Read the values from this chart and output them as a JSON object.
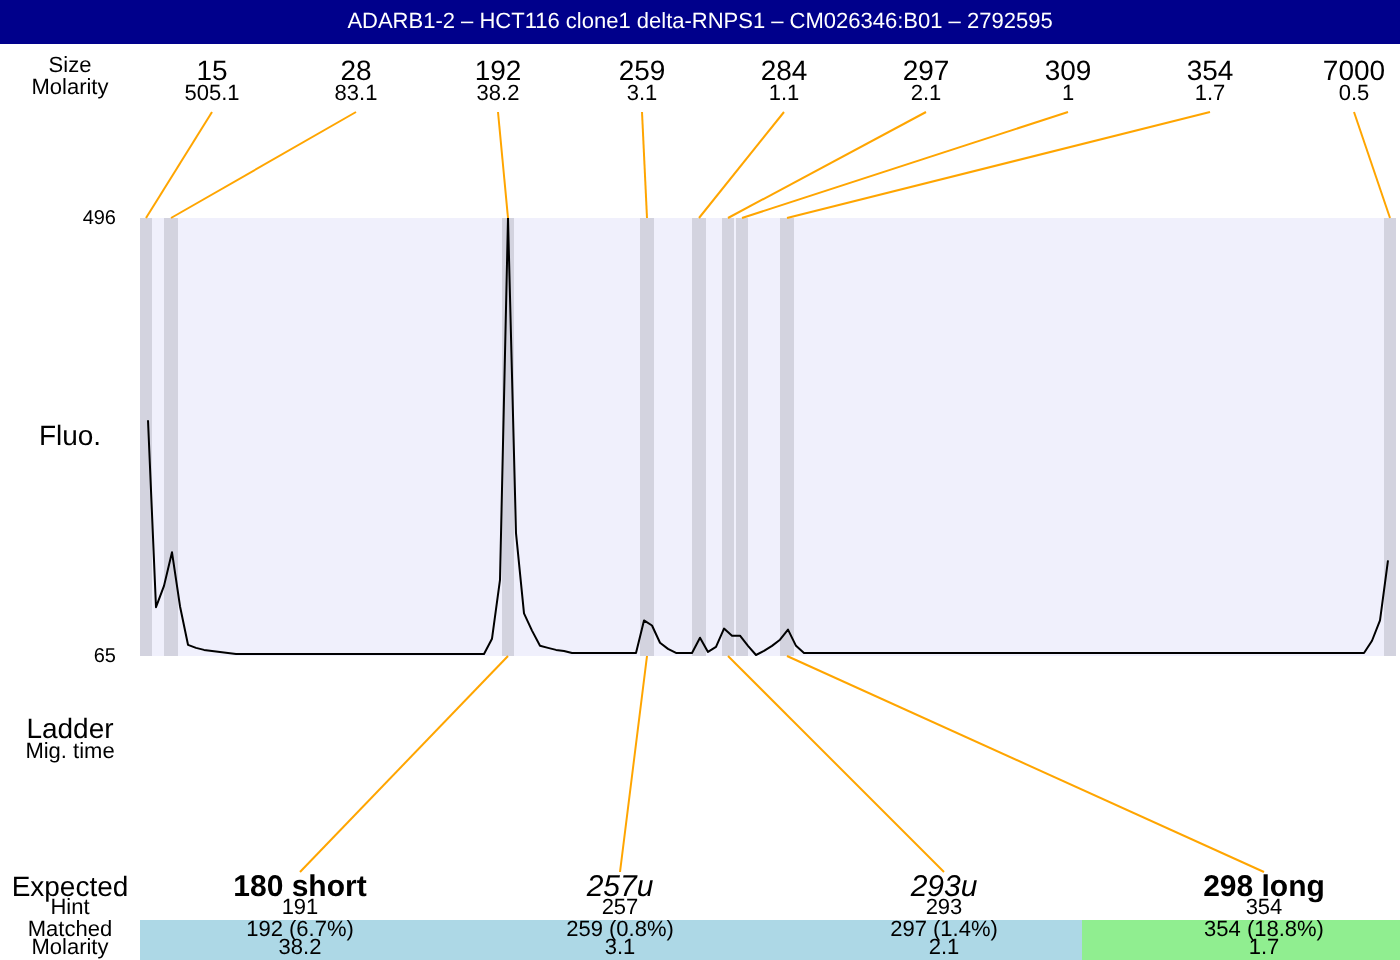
{
  "chart_data": {
    "type": "line",
    "title": "ADARB1-2 – HCT116 clone1 delta-RNPS1 – CM026346:B01 – 2792595",
    "ylabel": "Fluo.",
    "categories": [
      null,
      null,
      null,
      null,
      null,
      null,
      null,
      null,
      null,
      null,
      null,
      null,
      null,
      null,
      null,
      null,
      null,
      null,
      null,
      null,
      null,
      null,
      null,
      null,
      null,
      null,
      null,
      null,
      null,
      null,
      null,
      null,
      null,
      null,
      null,
      null,
      null,
      null,
      null,
      null,
      null,
      null,
      null,
      null,
      null,
      null,
      null,
      null,
      null,
      null,
      null,
      null,
      null,
      null,
      null,
      null,
      null,
      null,
      null,
      null,
      null,
      null,
      null,
      null,
      null,
      null,
      null,
      null,
      null,
      null,
      null,
      null,
      null,
      null,
      null,
      null,
      null,
      null,
      null,
      null,
      null,
      null,
      null,
      null,
      null,
      null,
      null,
      null,
      null,
      null,
      null,
      null,
      null,
      null,
      null,
      null,
      null,
      null,
      null,
      null,
      null,
      null,
      null,
      null,
      null,
      null,
      null,
      null,
      null,
      null,
      null,
      null,
      null,
      null,
      null,
      null,
      null,
      null,
      null,
      null,
      null,
      null,
      null,
      null,
      null,
      null,
      null,
      null,
      null,
      null,
      null,
      null,
      null,
      null,
      null,
      null,
      null,
      null,
      null,
      null,
      null,
      null,
      null,
      null,
      null,
      null,
      null,
      null,
      null,
      null,
      null,
      null,
      null,
      null,
      null,
      null,
      null,
      null
    ],
    "values": [
      null,
      297,
      113,
      134,
      167,
      114,
      76,
      73,
      71,
      70,
      69,
      68,
      67,
      67,
      67,
      67,
      67,
      67,
      67,
      67,
      67,
      67,
      67,
      67,
      67,
      67,
      67,
      67,
      67,
      67,
      67,
      67,
      67,
      67,
      67,
      67,
      67,
      67,
      67,
      67,
      67,
      67,
      67,
      67,
      82,
      140,
      496,
      186,
      107,
      90,
      75,
      73,
      71,
      70,
      68,
      68,
      68,
      68,
      68,
      68,
      68,
      68,
      68,
      100,
      95,
      78,
      72,
      68,
      68,
      68,
      83,
      69,
      74,
      92,
      85,
      85,
      75,
      66,
      70,
      75,
      81,
      91,
      75,
      68,
      68,
      68,
      68,
      68,
      68,
      68,
      68,
      68,
      68,
      68,
      68,
      68,
      68,
      68,
      68,
      68,
      68,
      68,
      68,
      68,
      68,
      68,
      68,
      68,
      68,
      68,
      68,
      68,
      68,
      68,
      68,
      68,
      68,
      68,
      68,
      68,
      68,
      68,
      68,
      68,
      68,
      68,
      68,
      68,
      68,
      68,
      68,
      68,
      68,
      68,
      68,
      68,
      68,
      68,
      68,
      68,
      68,
      68,
      68,
      68,
      68,
      68,
      68,
      68,
      68,
      68,
      68,
      68,
      68,
      68,
      80,
      100,
      159,
      null
    ],
    "color": "#000000",
    "marker": "none",
    "ylim": [
      65,
      496
    ],
    "yticks": [
      65,
      496
    ],
    "tick_labels": "y",
    "annotations": [
      "Size",
      "Molarity",
      "15",
      "28",
      "192",
      "259",
      "284",
      "297",
      "309",
      "354",
      "7000",
      "505.1",
      "83.1",
      "38.2",
      "3.1",
      "1.1",
      "2.1",
      "1",
      "1.7",
      "0.5",
      "Ladder",
      "Mig. time",
      "Expected",
      "Hint",
      "Matched",
      "Molarity",
      "180 short",
      "257u",
      "293u",
      "298 long",
      "191",
      "257",
      "293",
      "354",
      "192 (6.7%)",
      "259 (0.8%)",
      "297 (1.4%)",
      "354 (18.8%)",
      "38.2",
      "3.1",
      "2.1",
      "1.7"
    ]
  }
}
